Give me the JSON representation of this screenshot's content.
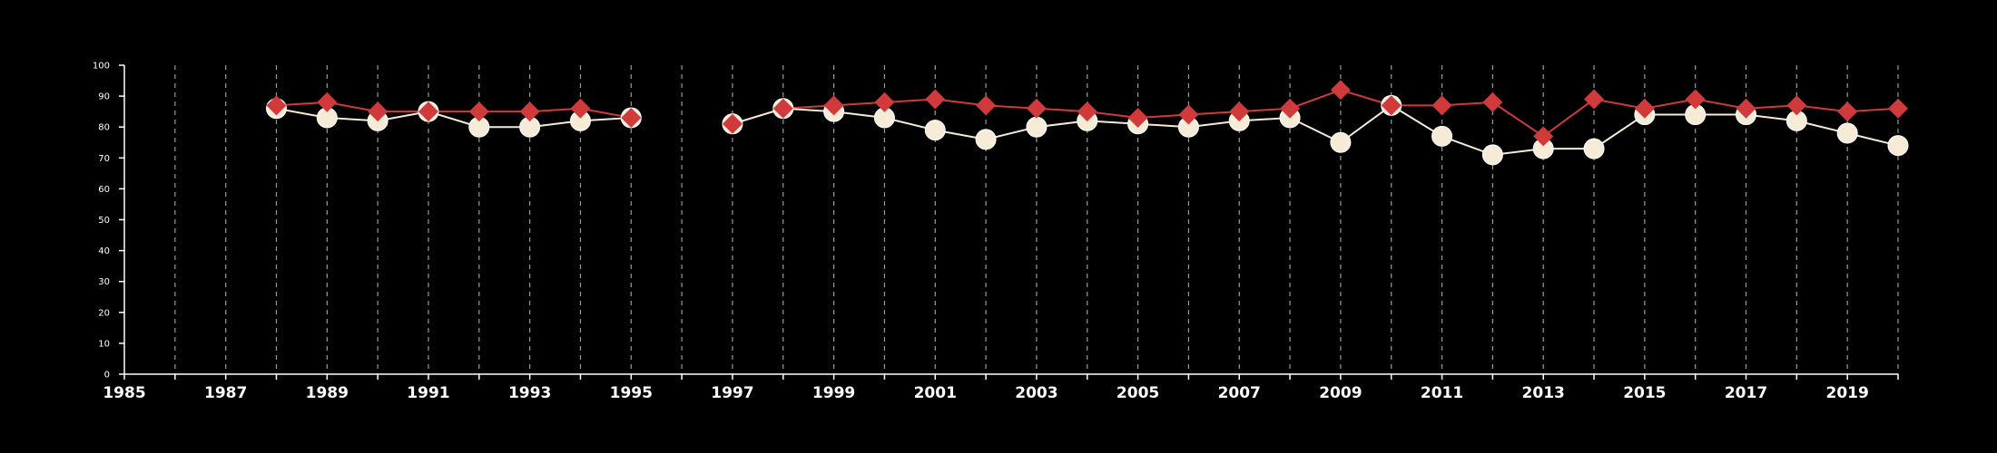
{
  "chart_data": {
    "type": "line",
    "title": "",
    "xlabel": "",
    "ylabel": "",
    "xlim": [
      1985,
      2020
    ],
    "ylim": [
      0,
      100
    ],
    "x_ticks": [
      1985,
      1987,
      1989,
      1991,
      1993,
      1995,
      1997,
      1999,
      2001,
      2003,
      2005,
      2007,
      2009,
      2011,
      2013,
      2015,
      2017,
      2019
    ],
    "y_ticks": [
      0,
      10,
      20,
      30,
      40,
      50,
      60,
      70,
      80,
      90,
      100
    ],
    "vertical_grid": "dashed, every year",
    "legend": "none",
    "background": "#000000",
    "series": [
      {
        "color": "#d13a3a",
        "marker": "diamond",
        "points": [
          {
            "x": 1988,
            "y": 87
          },
          {
            "x": 1989,
            "y": 88
          },
          {
            "x": 1990,
            "y": 85
          },
          {
            "x": 1991,
            "y": 85
          },
          {
            "x": 1992,
            "y": 85
          },
          {
            "x": 1993,
            "y": 85
          },
          {
            "x": 1994,
            "y": 86
          },
          {
            "x": 1995,
            "y": 83
          },
          {
            "x": 1996,
            "y": null
          },
          {
            "x": 1997,
            "y": 81
          },
          {
            "x": 1998,
            "y": 86
          },
          {
            "x": 1999,
            "y": 87
          },
          {
            "x": 2000,
            "y": 88
          },
          {
            "x": 2001,
            "y": 89
          },
          {
            "x": 2002,
            "y": 87
          },
          {
            "x": 2003,
            "y": 86
          },
          {
            "x": 2004,
            "y": 85
          },
          {
            "x": 2005,
            "y": 83
          },
          {
            "x": 2006,
            "y": 84
          },
          {
            "x": 2007,
            "y": 85
          },
          {
            "x": 2008,
            "y": 86
          },
          {
            "x": 2009,
            "y": 92
          },
          {
            "x": 2010,
            "y": 87
          },
          {
            "x": 2011,
            "y": 87
          },
          {
            "x": 2012,
            "y": 88
          },
          {
            "x": 2013,
            "y": 77
          },
          {
            "x": 2014,
            "y": 89
          },
          {
            "x": 2015,
            "y": 86
          },
          {
            "x": 2016,
            "y": 89
          },
          {
            "x": 2017,
            "y": 86
          },
          {
            "x": 2018,
            "y": 87
          },
          {
            "x": 2019,
            "y": 85
          },
          {
            "x": 2020,
            "y": 86
          }
        ]
      },
      {
        "color": "#f5ebd7",
        "marker": "circle",
        "points": [
          {
            "x": 1988,
            "y": 86
          },
          {
            "x": 1989,
            "y": 83
          },
          {
            "x": 1990,
            "y": 82
          },
          {
            "x": 1991,
            "y": 85
          },
          {
            "x": 1992,
            "y": 80
          },
          {
            "x": 1993,
            "y": 80
          },
          {
            "x": 1994,
            "y": 82
          },
          {
            "x": 1995,
            "y": 83
          },
          {
            "x": 1996,
            "y": null
          },
          {
            "x": 1997,
            "y": 81
          },
          {
            "x": 1998,
            "y": 86
          },
          {
            "x": 1999,
            "y": 85
          },
          {
            "x": 2000,
            "y": 83
          },
          {
            "x": 2001,
            "y": 79
          },
          {
            "x": 2002,
            "y": 76
          },
          {
            "x": 2003,
            "y": 80
          },
          {
            "x": 2004,
            "y": 82
          },
          {
            "x": 2005,
            "y": 81
          },
          {
            "x": 2006,
            "y": 80
          },
          {
            "x": 2007,
            "y": 82
          },
          {
            "x": 2008,
            "y": 83
          },
          {
            "x": 2009,
            "y": 75
          },
          {
            "x": 2010,
            "y": 87
          },
          {
            "x": 2011,
            "y": 77
          },
          {
            "x": 2012,
            "y": 71
          },
          {
            "x": 2013,
            "y": 73
          },
          {
            "x": 2014,
            "y": 73
          },
          {
            "x": 2015,
            "y": 84
          },
          {
            "x": 2016,
            "y": 84
          },
          {
            "x": 2017,
            "y": 84
          },
          {
            "x": 2018,
            "y": 82
          },
          {
            "x": 2019,
            "y": 78
          },
          {
            "x": 2020,
            "y": 74
          }
        ]
      }
    ]
  }
}
